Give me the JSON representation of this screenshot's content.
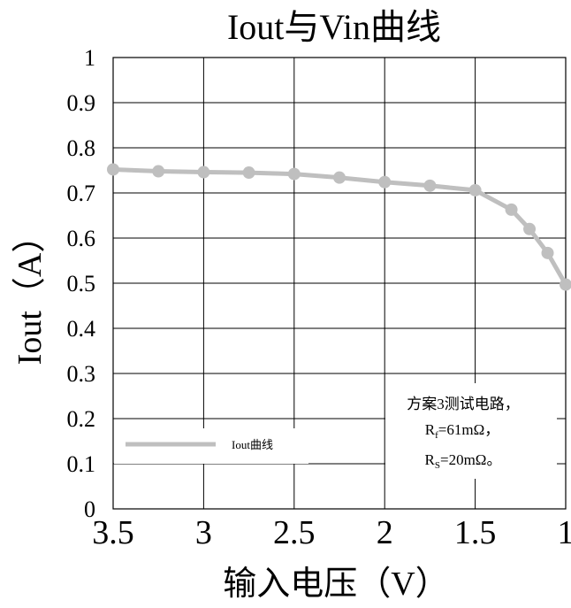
{
  "chart_data": {
    "type": "line",
    "title": "Iout与Vin曲线",
    "xlabel": "输入电压（V）",
    "ylabel": "Iout（A）",
    "x_reversed": true,
    "xlim": [
      3.5,
      1
    ],
    "ylim": [
      0,
      1
    ],
    "x_ticks": [
      "3.5",
      "3",
      "2.5",
      "2",
      "1.5",
      "1"
    ],
    "y_ticks": [
      "0",
      "0.1",
      "0.2",
      "0.3",
      "0.4",
      "0.5",
      "0.6",
      "0.7",
      "0.8",
      "0.9",
      "1"
    ],
    "grid": true,
    "legend_position": "bottom-left",
    "series": [
      {
        "name": "Iout曲线",
        "color": "#bfbfbf",
        "x": [
          3.5,
          3.25,
          3.0,
          2.75,
          2.5,
          2.25,
          2.0,
          1.75,
          1.5,
          1.3,
          1.2,
          1.1,
          1.0
        ],
        "y": [
          0.752,
          0.748,
          0.746,
          0.745,
          0.742,
          0.734,
          0.724,
          0.716,
          0.706,
          0.663,
          0.62,
          0.567,
          0.497
        ]
      }
    ],
    "annotation": {
      "line1": "方案3测试电路，",
      "line2_prefix": "R",
      "line2_sub": "f",
      "line2_suffix": "=61mΩ，",
      "line3_prefix": "R",
      "line3_sub": "S",
      "line3_suffix": "=20mΩ。"
    }
  }
}
